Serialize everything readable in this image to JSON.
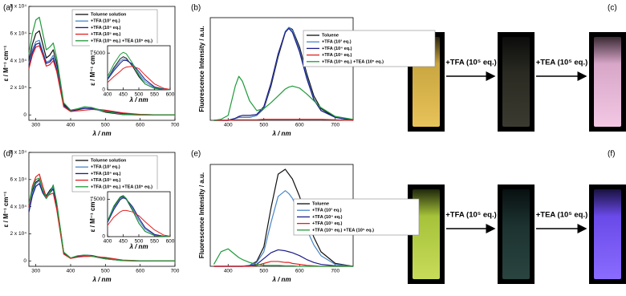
{
  "chart_data": [
    {
      "type": "line",
      "panel": "(a)",
      "x_label": "λ / nm",
      "y_label": "ε / M⁻¹ cm⁻¹",
      "x": [
        280,
        290,
        300,
        310,
        320,
        330,
        340,
        350,
        360,
        380,
        400,
        420,
        440,
        460,
        480,
        500,
        550,
        600,
        650,
        700
      ],
      "xlim": [
        280,
        700
      ],
      "xticks": [
        300,
        400,
        500,
        600,
        700
      ],
      "ylim": [
        -4000,
        80000
      ],
      "yticks": [
        0,
        {
          "value": 20000,
          "label": "2 x 10⁴"
        },
        {
          "value": 40000,
          "label": "4 x 10⁴"
        },
        {
          "value": 60000,
          "label": "6 x 10⁴"
        },
        {
          "value": 80000,
          "label": "8 x 10⁴"
        }
      ],
      "series": [
        {
          "name": "Toluene solution",
          "color": "#111111",
          "values": [
            40000,
            52000,
            60000,
            62000,
            52000,
            42000,
            44000,
            48000,
            38000,
            8000,
            3000,
            4000,
            5000,
            4500,
            3500,
            2000,
            300,
            0,
            0,
            0
          ]
        },
        {
          "name": "+TFA (10³ eq.)",
          "color": "#4a86c8",
          "values": [
            38000,
            48000,
            54000,
            55000,
            47000,
            39000,
            40000,
            44000,
            35000,
            7000,
            3000,
            4000,
            5000,
            4500,
            3500,
            2500,
            800,
            200,
            0,
            0
          ]
        },
        {
          "name": "+TFA (10⁴ eq.)",
          "color": "#1c1c8a",
          "values": [
            36000,
            46000,
            52000,
            53000,
            45000,
            38000,
            39000,
            42000,
            33000,
            7000,
            3000,
            3800,
            4800,
            4800,
            4000,
            3000,
            1000,
            200,
            0,
            0
          ]
        },
        {
          "name": "+TFA (10⁵ eq.)",
          "color": "#e02020",
          "values": [
            34000,
            44000,
            50000,
            51000,
            44000,
            36000,
            37000,
            40000,
            32000,
            6000,
            2500,
            3000,
            3500,
            4000,
            4000,
            3500,
            1500,
            400,
            0,
            0
          ]
        },
        {
          "name": "+TFA (10⁵ eq.) +TEA (10⁵ eq.)",
          "color": "#1f9a3a",
          "values": [
            45000,
            60000,
            70000,
            72000,
            60000,
            48000,
            50000,
            53000,
            42000,
            9000,
            3500,
            4500,
            6000,
            5500,
            4000,
            2500,
            400,
            0,
            0,
            0
          ]
        }
      ]
    },
    {
      "type": "line",
      "x_label": "λ / nm",
      "y_label": "ε / M⁻¹ cm⁻¹",
      "x": [
        400,
        420,
        440,
        450,
        460,
        480,
        500,
        520,
        550,
        580,
        600
      ],
      "xlim": [
        400,
        600
      ],
      "xticks": [
        400,
        450,
        500,
        550,
        600
      ],
      "ylim": [
        0,
        6000
      ],
      "yticks": [
        0,
        5000
      ],
      "series": [
        {
          "color": "#111111",
          "values": [
            1500,
            3000,
            4200,
            4500,
            4300,
            3200,
            1800,
            800,
            200,
            50,
            0
          ]
        },
        {
          "color": "#4a86c8",
          "values": [
            1500,
            2800,
            3900,
            4200,
            4100,
            3400,
            2200,
            1100,
            300,
            80,
            0
          ]
        },
        {
          "color": "#1c1c8a",
          "values": [
            1400,
            2600,
            3600,
            4000,
            4000,
            3500,
            2500,
            1400,
            400,
            100,
            0
          ]
        },
        {
          "color": "#e02020",
          "values": [
            1000,
            1800,
            2500,
            2900,
            3100,
            3200,
            2900,
            2000,
            800,
            200,
            50
          ]
        },
        {
          "color": "#1f9a3a",
          "values": [
            1800,
            3500,
            4800,
            5100,
            4900,
            3600,
            2000,
            800,
            200,
            50,
            0
          ]
        }
      ]
    },
    {
      "type": "line",
      "panel": "(b)",
      "x_label": "λ / nm",
      "y_label": "Fluorescence Intensity / a.u.",
      "x": [
        360,
        380,
        400,
        420,
        430,
        440,
        460,
        480,
        500,
        520,
        540,
        560,
        570,
        580,
        600,
        620,
        640,
        660,
        700,
        750
      ],
      "xlim": [
        350,
        750
      ],
      "xticks": [
        400,
        500,
        600,
        700
      ],
      "ylim": [
        0,
        105
      ],
      "series": [
        {
          "name": "Toluene",
          "color": "#111111",
          "values": [
            0,
            0,
            0,
            2,
            3,
            3,
            3,
            5,
            12,
            35,
            65,
            90,
            95,
            93,
            75,
            48,
            25,
            12,
            3,
            0
          ]
        },
        {
          "name": "+TFA (10³ eq.)",
          "color": "#4a86c8",
          "values": [
            0,
            0,
            0,
            2,
            3,
            3,
            3,
            5,
            13,
            37,
            67,
            91,
            95,
            92,
            72,
            45,
            22,
            10,
            3,
            0
          ]
        },
        {
          "name": "+TFA (10⁴ eq.)",
          "color": "#1c1c8a",
          "values": [
            0,
            0,
            0,
            2,
            4,
            5,
            5,
            6,
            14,
            38,
            68,
            90,
            94,
            90,
            70,
            43,
            21,
            10,
            3,
            0
          ]
        },
        {
          "name": "+TFA (10⁵ eq.)",
          "color": "#e02020",
          "values": [
            0,
            0,
            0,
            0.5,
            0.5,
            0.5,
            0.5,
            0.5,
            1,
            1,
            1,
            1,
            1,
            1,
            1,
            1,
            1,
            1,
            0.5,
            0
          ]
        },
        {
          "name": "+TFA (10⁵ eq.) +TEA (10⁵ eq.)",
          "color": "#1f9a3a",
          "values": [
            0,
            1,
            5,
            35,
            45,
            40,
            20,
            10,
            12,
            18,
            25,
            32,
            34,
            35,
            33,
            27,
            20,
            13,
            4,
            1
          ]
        }
      ]
    },
    {
      "type": "line",
      "panel": "(d)",
      "x_label": "λ / nm",
      "y_label": "ε / M⁻¹ cm⁻¹",
      "x": [
        280,
        290,
        300,
        310,
        320,
        330,
        340,
        350,
        360,
        380,
        400,
        420,
        440,
        460,
        480,
        500,
        550,
        600,
        650,
        700
      ],
      "xlim": [
        280,
        700
      ],
      "xticks": [
        300,
        400,
        500,
        600,
        700
      ],
      "ylim": [
        -4000,
        80000
      ],
      "yticks": [
        0,
        {
          "value": 20000,
          "label": "2 x 10⁴"
        },
        {
          "value": 40000,
          "label": "4 x 10⁴"
        },
        {
          "value": 60000,
          "label": "6 x 10⁴"
        },
        {
          "value": 80000,
          "label": "8 x 10⁴"
        }
      ],
      "series": [
        {
          "name": "Toluene solution",
          "color": "#111111",
          "values": [
            40000,
            52000,
            58000,
            60000,
            52000,
            48000,
            52000,
            55000,
            42000,
            6000,
            2000,
            3500,
            4000,
            3500,
            2500,
            1500,
            200,
            0,
            0,
            0
          ]
        },
        {
          "name": "+TFA (10³ eq.)",
          "color": "#4a86c8",
          "values": [
            38000,
            50000,
            57000,
            59000,
            51000,
            47000,
            51000,
            54000,
            41000,
            6000,
            2000,
            3500,
            4200,
            3800,
            2800,
            1700,
            300,
            0,
            0,
            0
          ]
        },
        {
          "name": "+TFA (10⁴ eq.)",
          "color": "#1c1c8a",
          "values": [
            36000,
            48000,
            55000,
            57000,
            50000,
            46000,
            50000,
            53000,
            40000,
            6000,
            2000,
            3500,
            4200,
            4000,
            3000,
            2000,
            400,
            0,
            0,
            0
          ]
        },
        {
          "name": "+TFA (10⁵ eq.)",
          "color": "#e02020",
          "values": [
            40000,
            55000,
            62000,
            64000,
            55000,
            47000,
            49000,
            50000,
            38000,
            5000,
            1800,
            2800,
            3300,
            3300,
            3000,
            2500,
            600,
            100,
            0,
            0
          ]
        },
        {
          "name": "+TFA (10⁵ eq.) +TEA (10⁵ eq.)",
          "color": "#1f9a3a",
          "values": [
            42000,
            54000,
            60000,
            61000,
            52000,
            46000,
            50000,
            56000,
            43000,
            6500,
            2200,
            3800,
            4300,
            3600,
            2600,
            1600,
            200,
            0,
            0,
            0
          ]
        }
      ]
    },
    {
      "type": "line",
      "x_label": "λ / nm",
      "y_label": "ε / M⁻¹ cm⁻¹",
      "x": [
        400,
        420,
        440,
        450,
        460,
        480,
        500,
        520,
        550,
        580,
        600
      ],
      "xlim": [
        400,
        600
      ],
      "xticks": [
        400,
        450,
        500,
        550,
        600
      ],
      "ylim": [
        0,
        6000
      ],
      "yticks": [
        0,
        5000
      ],
      "series": [
        {
          "color": "#111111",
          "values": [
            2000,
            4000,
            5200,
            5400,
            5000,
            3500,
            1800,
            700,
            150,
            30,
            0
          ]
        },
        {
          "color": "#4a86c8",
          "values": [
            2000,
            3800,
            5000,
            5300,
            5000,
            3800,
            2200,
            1000,
            250,
            50,
            0
          ]
        },
        {
          "color": "#1c1c8a",
          "values": [
            1900,
            3600,
            4900,
            5200,
            5000,
            4000,
            2500,
            1200,
            300,
            60,
            0
          ]
        },
        {
          "color": "#e02020",
          "values": [
            1500,
            2600,
            3300,
            3500,
            3500,
            3300,
            2800,
            2000,
            900,
            200,
            50
          ]
        },
        {
          "color": "#1f9a3a",
          "values": [
            2100,
            4100,
            5300,
            5500,
            5100,
            3600,
            1800,
            700,
            150,
            30,
            0
          ]
        }
      ]
    },
    {
      "type": "line",
      "panel": "(e)",
      "x_label": "λ / nm",
      "y_label": "Fluorescence Intensity / a.u.",
      "x": [
        360,
        380,
        400,
        420,
        430,
        440,
        460,
        480,
        500,
        520,
        540,
        560,
        570,
        580,
        600,
        620,
        640,
        660,
        700,
        750
      ],
      "xlim": [
        350,
        750
      ],
      "xticks": [
        400,
        500,
        600,
        700
      ],
      "ylim": [
        0,
        105
      ],
      "series": [
        {
          "name": "Toluene",
          "color": "#111111",
          "values": [
            0,
            0,
            0,
            0,
            0,
            0,
            1,
            5,
            20,
            60,
            95,
            100,
            95,
            90,
            72,
            50,
            30,
            15,
            3,
            0
          ]
        },
        {
          "name": "+TFA (10³ eq.)",
          "color": "#4a86c8",
          "values": [
            0,
            0,
            0,
            0,
            0,
            0,
            1,
            4,
            15,
            45,
            72,
            78,
            75,
            70,
            55,
            38,
            22,
            11,
            2,
            0
          ]
        },
        {
          "name": "+TFA (10⁴ eq.)",
          "color": "#1c1c8a",
          "values": [
            0,
            0,
            0,
            0,
            0,
            0,
            0.5,
            2,
            8,
            14,
            17,
            16,
            15,
            14,
            11,
            7,
            4,
            2,
            0.5,
            0
          ]
        },
        {
          "name": "+TFA (10⁵ eq.)",
          "color": "#e02020",
          "values": [
            0,
            0,
            0,
            0,
            0,
            0,
            0,
            1,
            3,
            5,
            5,
            4,
            4,
            3,
            2,
            1,
            0.5,
            0,
            0,
            0
          ]
        },
        {
          "name": "+TFA (10⁵ eq.) +TEA (10⁵ eq.)",
          "color": "#1f9a3a",
          "values": [
            2,
            15,
            18,
            12,
            9,
            7,
            4,
            2,
            1,
            1,
            1,
            0.5,
            0.5,
            0.5,
            0,
            0,
            0,
            0,
            0,
            0
          ]
        }
      ]
    }
  ],
  "photo_panels": [
    {
      "label": "(c)",
      "steps": [
        "+TFA (10⁵ eq.)",
        "+TEA (10⁵ eq.)"
      ]
    },
    {
      "label": "(f)",
      "steps": [
        "+TFA (10⁵ eq.)",
        "+TEA (10⁵ eq.)"
      ]
    }
  ]
}
